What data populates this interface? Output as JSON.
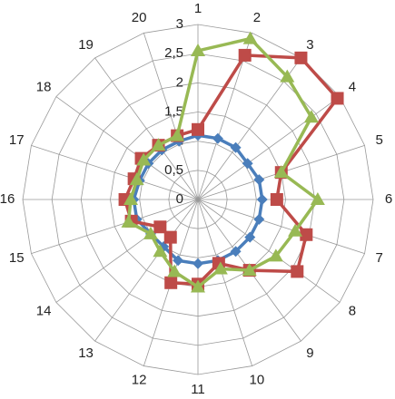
{
  "chart_data": {
    "type": "radar",
    "categories": [
      "1",
      "2",
      "3",
      "4",
      "5",
      "6",
      "7",
      "8",
      "9",
      "10",
      "11",
      "12",
      "13",
      "14",
      "15",
      "16",
      "17",
      "18",
      "19",
      "20"
    ],
    "ylim": [
      0,
      3
    ],
    "yticks": [
      0,
      {
        "value": 0.5,
        "label": "0,5"
      },
      1,
      {
        "value": 1.5,
        "label": "1,5"
      },
      2,
      {
        "value": 2.5,
        "label": "2,5"
      },
      3
    ],
    "grid": true,
    "series": [
      {
        "color": "#4a7ebb",
        "marker": "diamond",
        "values": [
          1.1,
          1.1,
          1.1,
          1.05,
          1.1,
          1.1,
          1.1,
          1.1,
          1.1,
          1.1,
          1.1,
          1.1,
          1.0,
          1.0,
          1.1,
          1.1,
          1.05,
          1.05,
          1.05,
          1.05
        ]
      },
      {
        "color": "#be4b48",
        "marker": "square",
        "values": [
          1.2,
          2.6,
          3.0,
          2.95,
          1.5,
          1.35,
          1.95,
          2.1,
          1.5,
          1.15,
          1.45,
          1.5,
          0.8,
          0.8,
          1.2,
          1.25,
          1.15,
          1.2,
          1.15,
          1.15
        ]
      },
      {
        "color": "#98b954",
        "marker": "triangle",
        "values": [
          2.55,
          2.9,
          2.6,
          2.4,
          1.5,
          2.05,
          1.75,
          1.65,
          1.5,
          1.25,
          1.5,
          1.3,
          1.1,
          1.0,
          1.25,
          1.15,
          1.1,
          1.15,
          1.15,
          1.15
        ]
      }
    ]
  }
}
